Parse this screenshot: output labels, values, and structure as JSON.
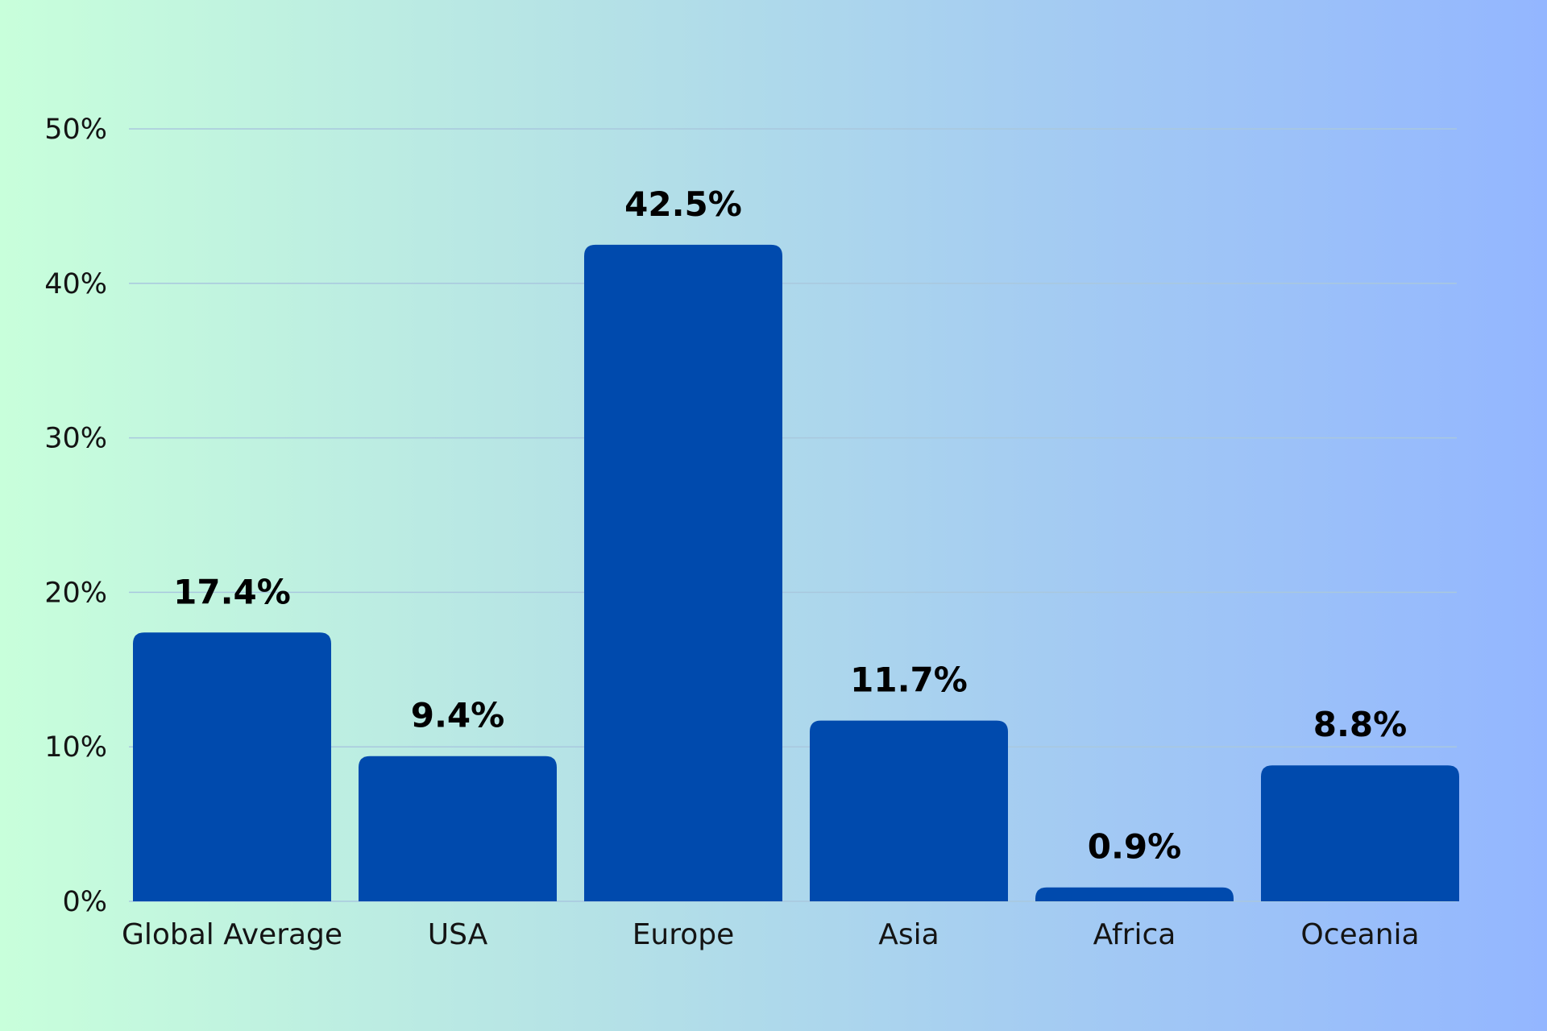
{
  "chart_data": {
    "type": "bar",
    "categories": [
      "Global Average",
      "USA",
      "Europe",
      "Asia",
      "Africa",
      "Oceania"
    ],
    "values": [
      17.4,
      9.4,
      42.5,
      11.7,
      0.9,
      8.8
    ],
    "value_labels": [
      "17.4%",
      "9.4%",
      "42.5%",
      "11.7%",
      "0.9%",
      "8.8%"
    ],
    "y_ticks": [
      0,
      10,
      20,
      30,
      40,
      50
    ],
    "y_tick_labels": [
      "0%",
      "10%",
      "20%",
      "30%",
      "40%",
      "50%"
    ],
    "ylim": [
      0,
      50
    ],
    "grid": true,
    "legend": "none"
  },
  "colors": {
    "bar": "#004aad",
    "grid": "#a9c8de",
    "text": "#141414",
    "value_text": "#000000"
  }
}
